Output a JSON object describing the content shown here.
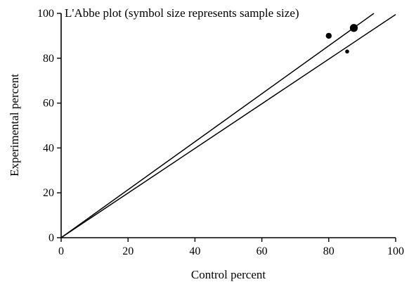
{
  "chart_data": {
    "type": "scatter",
    "title": "L'Abbe plot (symbol size represents sample size)",
    "xlabel": "Control percent",
    "ylabel": "Experimental percent",
    "xlim": [
      0,
      100
    ],
    "ylim": [
      0,
      100
    ],
    "xticks": [
      "0",
      "20",
      "40",
      "60",
      "80",
      "100"
    ],
    "yticks": [
      "0",
      "20",
      "40",
      "60",
      "80",
      "100"
    ],
    "grid": false,
    "points": [
      {
        "x": 80,
        "y": 90,
        "sample_size": "medium"
      },
      {
        "x": 87.5,
        "y": 93.5,
        "sample_size": "large"
      },
      {
        "x": 85.5,
        "y": 83,
        "sample_size": "small"
      }
    ],
    "lines": [
      {
        "x1": 0,
        "y1": 0,
        "x2": 93.5,
        "y2": 100
      },
      {
        "x1": 0,
        "y1": 0,
        "x2": 100,
        "y2": 99.5
      }
    ],
    "colors": {
      "ink": "#000000",
      "background": "#ffffff"
    }
  }
}
